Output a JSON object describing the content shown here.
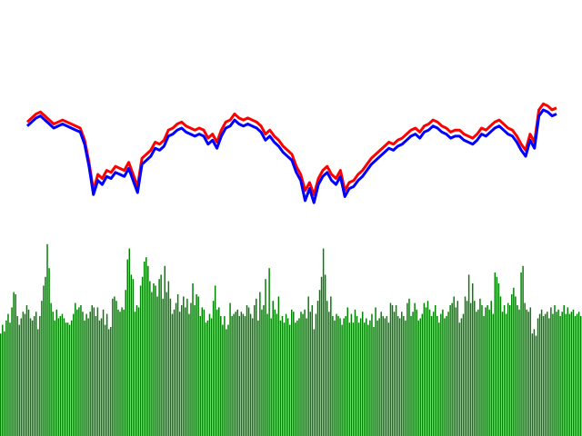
{
  "chart_data": [
    {
      "type": "line",
      "title": "",
      "xlabel": "",
      "ylabel": "",
      "grid": false,
      "legend": "none",
      "ylim": [
        0,
        100
      ],
      "x": [
        0,
        1,
        2,
        3,
        4,
        5,
        6,
        7,
        8,
        9,
        10,
        11,
        12,
        13,
        14,
        15,
        16,
        17,
        18,
        19,
        20,
        21,
        22,
        23,
        24,
        25,
        26,
        27,
        28,
        29,
        30,
        31,
        32,
        33,
        34,
        35,
        36,
        37,
        38,
        39,
        40,
        41,
        42,
        43,
        44,
        45,
        46,
        47,
        48,
        49,
        50,
        51,
        52,
        53,
        54,
        55,
        56,
        57,
        58,
        59,
        60,
        61,
        62,
        63,
        64,
        65,
        66,
        67,
        68,
        69,
        70,
        71,
        72,
        73,
        74,
        75,
        76,
        77,
        78,
        79,
        80,
        81,
        82,
        83,
        84,
        85,
        86,
        87,
        88,
        89,
        90,
        91,
        92,
        93,
        94,
        95,
        96,
        97,
        98,
        99,
        100,
        101,
        102,
        103,
        104,
        105,
        106,
        107,
        108,
        109,
        110,
        111,
        112,
        113,
        114,
        115,
        116,
        117,
        118,
        119,
        120
      ],
      "series": [
        {
          "color": "#ff0000",
          "values": [
            44,
            46,
            48,
            49,
            47,
            45,
            43,
            44,
            45,
            44,
            43,
            42,
            41,
            35,
            24,
            10,
            18,
            16,
            20,
            19,
            22,
            21,
            20,
            24,
            18,
            12,
            26,
            28,
            30,
            34,
            33,
            35,
            40,
            41,
            43,
            44,
            42,
            41,
            40,
            41,
            40,
            36,
            38,
            34,
            40,
            44,
            45,
            48,
            46,
            45,
            46,
            45,
            44,
            42,
            38,
            40,
            37,
            35,
            32,
            30,
            28,
            22,
            18,
            10,
            14,
            8,
            16,
            20,
            22,
            18,
            16,
            20,
            10,
            14,
            15,
            18,
            20,
            23,
            26,
            28,
            30,
            32,
            34,
            33,
            35,
            36,
            38,
            40,
            41,
            39,
            42,
            43,
            45,
            44,
            42,
            41,
            39,
            40,
            40,
            38,
            37,
            36,
            38,
            41,
            40,
            42,
            44,
            45,
            43,
            41,
            40,
            37,
            33,
            30,
            38,
            34,
            50,
            53,
            52,
            50,
            51
          ]
        },
        {
          "color": "#0000ff",
          "values": [
            42,
            44,
            46,
            47,
            45,
            43,
            41,
            42,
            43,
            42,
            41,
            40,
            39,
            33,
            22,
            8,
            15,
            13,
            17,
            16,
            19,
            18,
            17,
            21,
            15,
            9,
            23,
            25,
            27,
            31,
            30,
            32,
            37,
            38,
            40,
            41,
            39,
            38,
            37,
            38,
            37,
            33,
            35,
            31,
            37,
            41,
            42,
            45,
            43,
            42,
            43,
            42,
            41,
            39,
            35,
            37,
            34,
            32,
            29,
            27,
            25,
            19,
            15,
            5,
            11,
            4,
            13,
            17,
            19,
            15,
            13,
            17,
            7,
            11,
            12,
            15,
            17,
            20,
            23,
            25,
            27,
            29,
            31,
            30,
            32,
            33,
            35,
            37,
            38,
            36,
            39,
            40,
            42,
            41,
            39,
            38,
            36,
            37,
            37,
            35,
            34,
            33,
            35,
            38,
            37,
            39,
            41,
            42,
            40,
            38,
            37,
            34,
            30,
            27,
            35,
            31,
            47,
            50,
            49,
            47,
            48
          ]
        }
      ]
    },
    {
      "type": "bar",
      "title": "",
      "xlabel": "",
      "ylabel": "",
      "grid": false,
      "legend": "none",
      "color": "#008000",
      "ylim": [
        0,
        100
      ],
      "values": [
        47,
        51,
        48,
        53,
        56,
        52,
        59,
        66,
        65,
        55,
        51,
        54,
        57,
        56,
        60,
        58,
        54,
        53,
        55,
        57,
        49,
        55,
        62,
        69,
        73,
        88,
        77,
        61,
        57,
        53,
        58,
        54,
        55,
        56,
        54,
        52,
        52,
        51,
        53,
        56,
        61,
        58,
        59,
        60,
        57,
        53,
        56,
        54,
        57,
        60,
        59,
        55,
        59,
        53,
        54,
        58,
        51,
        56,
        49,
        50,
        63,
        64,
        62,
        58,
        57,
        59,
        58,
        67,
        81,
        86,
        74,
        72,
        57,
        60,
        59,
        69,
        73,
        80,
        82,
        78,
        71,
        66,
        70,
        69,
        64,
        72,
        74,
        63,
        78,
        66,
        71,
        63,
        56,
        58,
        61,
        65,
        57,
        60,
        64,
        59,
        63,
        56,
        61,
        70,
        60,
        65,
        64,
        55,
        59,
        58,
        52,
        53,
        56,
        54,
        62,
        69,
        58,
        59,
        55,
        51,
        55,
        49,
        51,
        61,
        55,
        56,
        57,
        58,
        55,
        57,
        56,
        55,
        60,
        59,
        56,
        54,
        60,
        63,
        53,
        66,
        58,
        60,
        72,
        56,
        77,
        54,
        62,
        58,
        56,
        64,
        53,
        55,
        52,
        56,
        54,
        51,
        58,
        57,
        52,
        53,
        54,
        57,
        56,
        58,
        54,
        64,
        57,
        60,
        49,
        56,
        62,
        67,
        73,
        86,
        74,
        62,
        57,
        64,
        55,
        53,
        56,
        55,
        54,
        51,
        54,
        55,
        59,
        52,
        56,
        52,
        58,
        55,
        52,
        54,
        57,
        52,
        54,
        51,
        53,
        56,
        50,
        59,
        53,
        54,
        57,
        55,
        54,
        55,
        52,
        61,
        60,
        57,
        60,
        55,
        54,
        57,
        55,
        53,
        61,
        63,
        55,
        57,
        61,
        58,
        53,
        54,
        56,
        61,
        59,
        62,
        58,
        55,
        57,
        60,
        55,
        52,
        56,
        58,
        54,
        55,
        57,
        60,
        61,
        64,
        59,
        62,
        52,
        54,
        56,
        64,
        62,
        74,
        61,
        70,
        62,
        57,
        58,
        63,
        60,
        55,
        59,
        60,
        58,
        62,
        56,
        75,
        73,
        70,
        64,
        57,
        60,
        56,
        61,
        60,
        65,
        68,
        64,
        60,
        58,
        75,
        78,
        61,
        58,
        57,
        59,
        47,
        49,
        46,
        54,
        56,
        58,
        55,
        56,
        57,
        54,
        59,
        56,
        60,
        57,
        58,
        55,
        57,
        60,
        56,
        59,
        56,
        57,
        58,
        55,
        56,
        57,
        55
      ]
    }
  ]
}
